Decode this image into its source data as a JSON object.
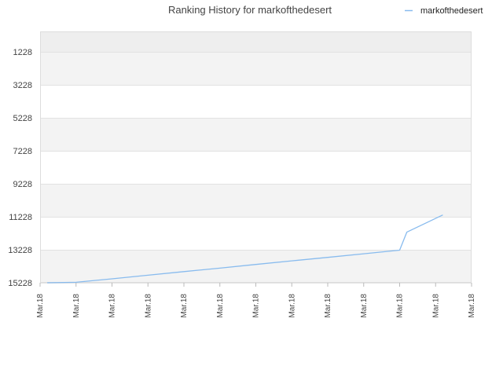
{
  "chart_data": {
    "type": "line",
    "title": "Ranking History for markofthedesert",
    "xlabel": "",
    "ylabel": "",
    "y_inverted": true,
    "ylim": [
      15228,
      1228
    ],
    "y_ticks": [
      1228,
      3228,
      5228,
      7228,
      9228,
      11228,
      13228,
      15228
    ],
    "x_tick_labels": [
      "Mar.18",
      "Mar.18",
      "Mar.18",
      "Mar.18",
      "Mar.18",
      "Mar.18",
      "Mar.18",
      "Mar.18",
      "Mar.18",
      "Mar.18",
      "Mar.18",
      "Mar.18",
      "Mar.18"
    ],
    "grid": true,
    "legend_position": "top-right",
    "series": [
      {
        "name": "markofthedesert",
        "color": "#88bbee",
        "x": [
          0.2,
          1.0,
          2.0,
          3.0,
          4.0,
          5.0,
          6.0,
          7.0,
          8.0,
          9.0,
          10.0,
          10.2,
          11.2
        ],
        "values": [
          15228,
          15200,
          14990,
          14770,
          14550,
          14340,
          14120,
          13900,
          13690,
          13470,
          13250,
          12160,
          11120
        ]
      }
    ]
  }
}
